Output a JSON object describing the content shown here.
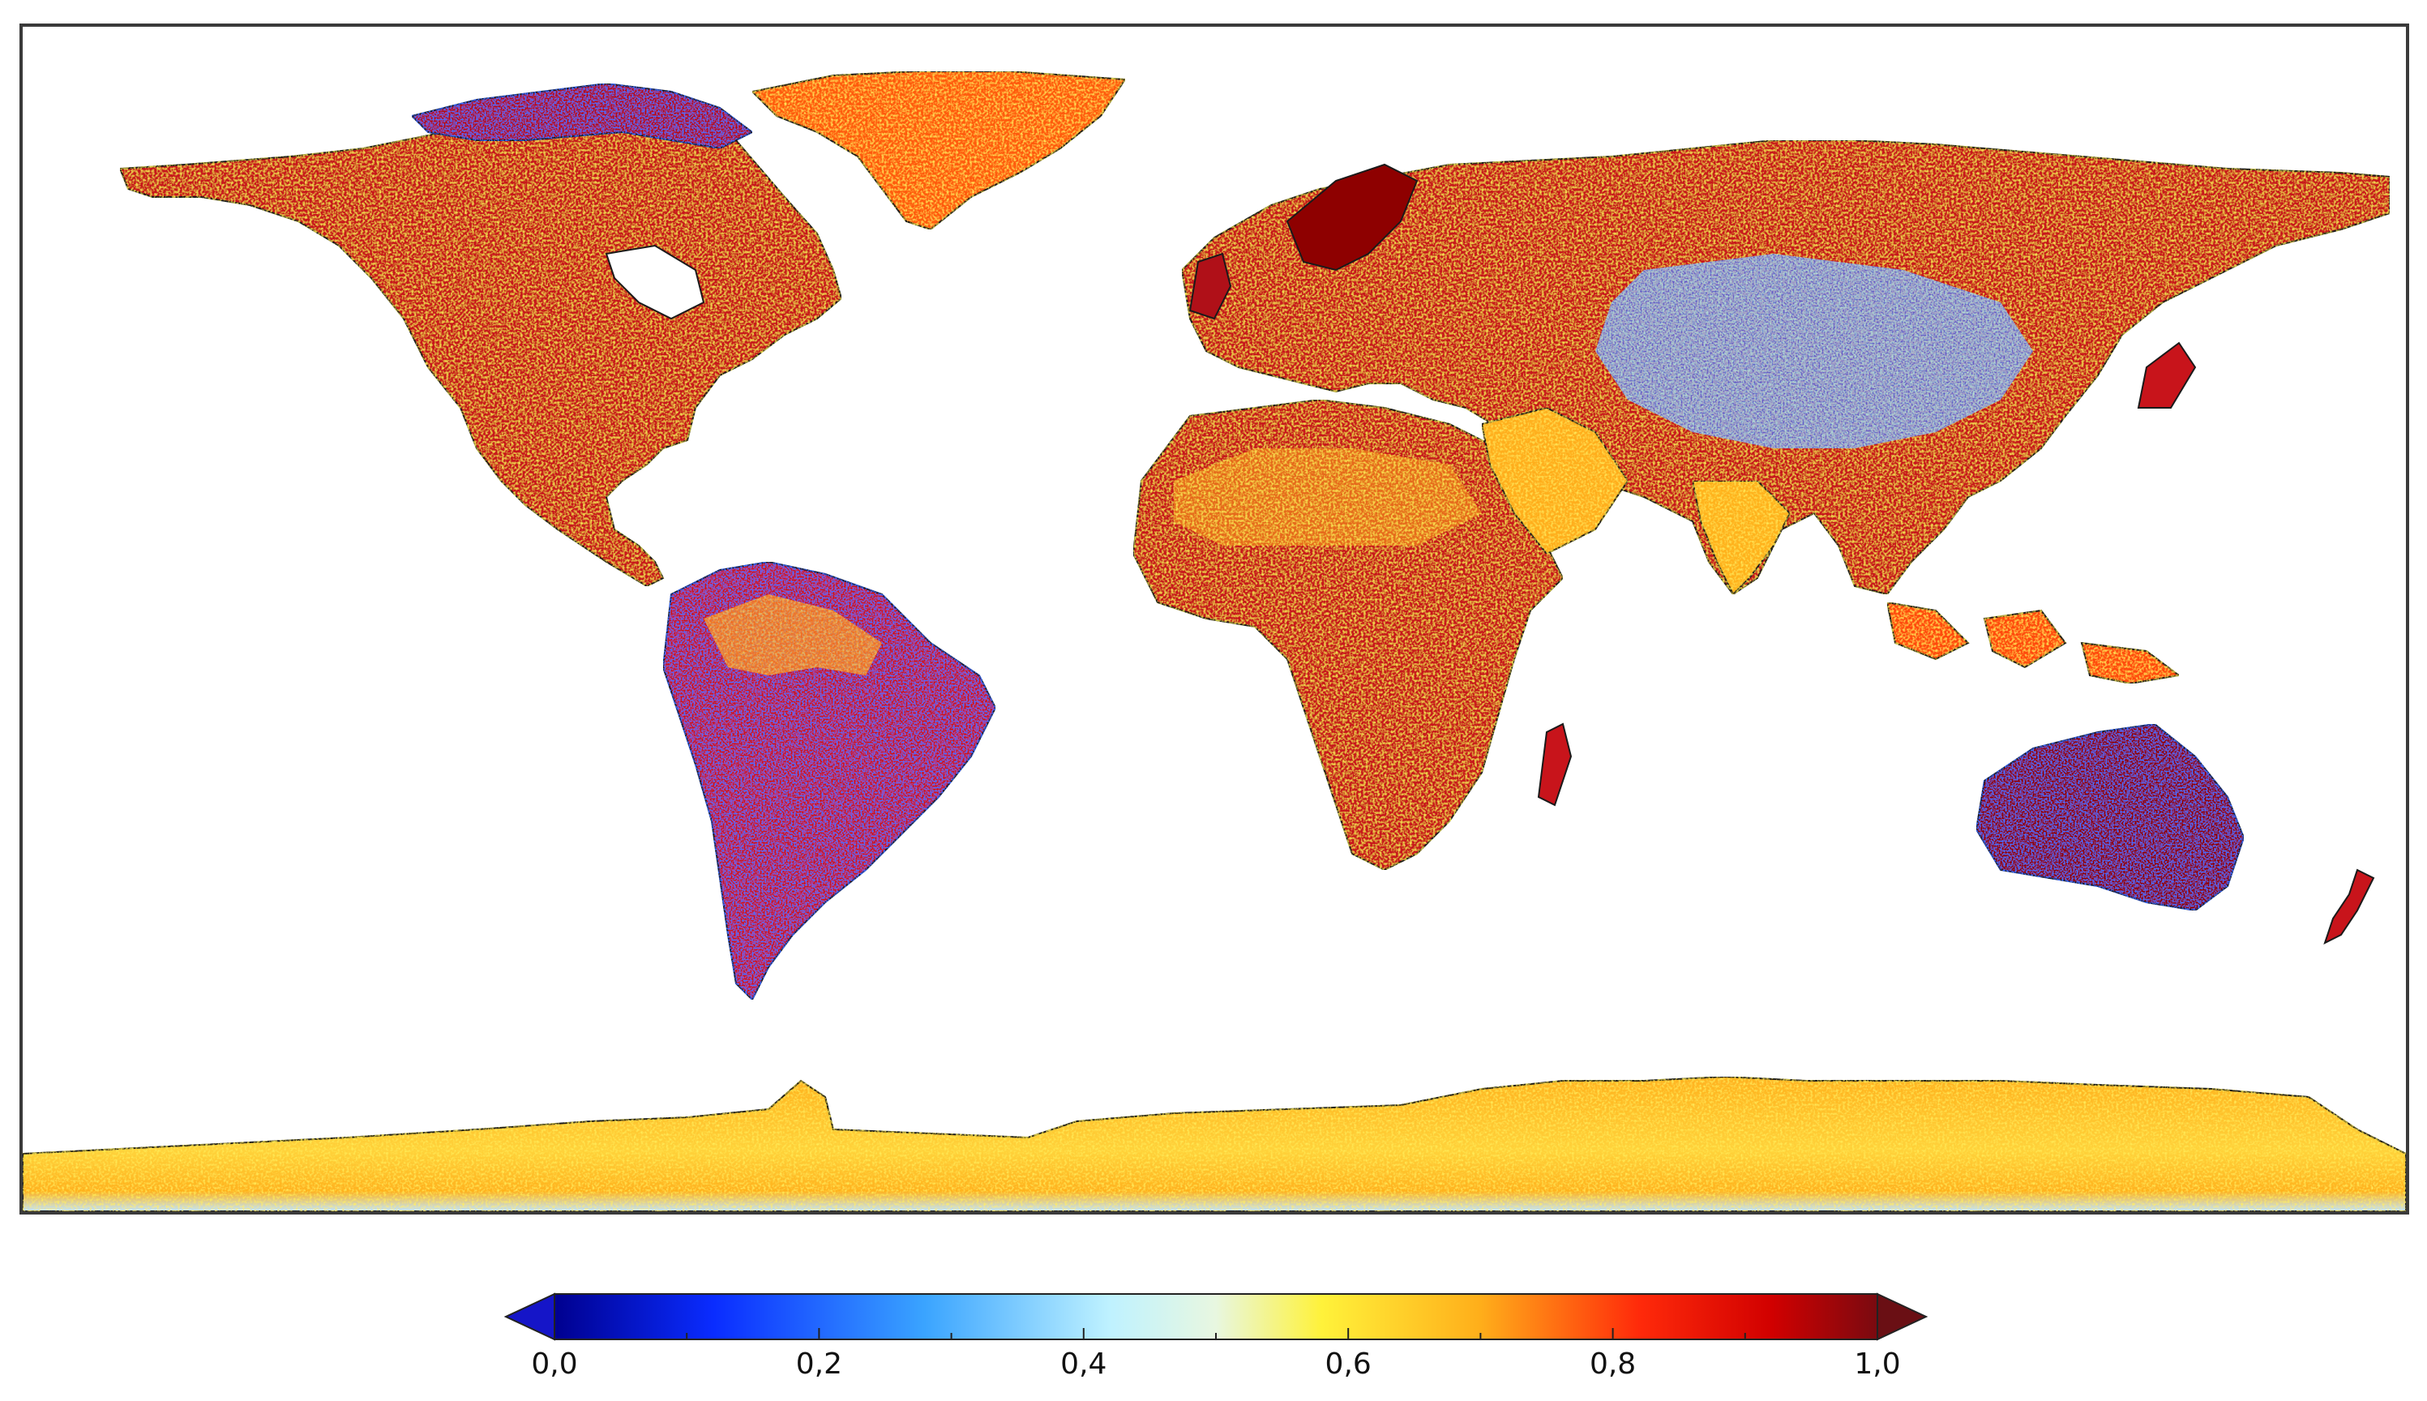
{
  "map": {
    "projection": "equirectangular",
    "extent": {
      "lon": [
        -180,
        180
      ],
      "lat": [
        -90,
        90
      ]
    },
    "colors": {
      "land_fill": "#c8141b",
      "land_dark": "#8e0000",
      "coastline": "#1a1a1a",
      "frame": "#3a3a3a",
      "ocean": "#ffffff"
    }
  },
  "colorbar": {
    "colormap": "jet",
    "range": [
      0.0,
      1.0
    ],
    "extend": "both",
    "under_color": "#1515c8",
    "over_color": "#6a0f14",
    "stops": [
      {
        "v": 0.0,
        "color": "#00008f"
      },
      {
        "v": 0.12,
        "color": "#0a2cff"
      },
      {
        "v": 0.28,
        "color": "#3aa4ff"
      },
      {
        "v": 0.42,
        "color": "#bff2ff"
      },
      {
        "v": 0.5,
        "color": "#e8f7e0"
      },
      {
        "v": 0.58,
        "color": "#fff23a"
      },
      {
        "v": 0.7,
        "color": "#ffae1a"
      },
      {
        "v": 0.82,
        "color": "#ff2a0a"
      },
      {
        "v": 0.92,
        "color": "#d10000"
      },
      {
        "v": 1.0,
        "color": "#7a0a10"
      }
    ],
    "ticks": [
      {
        "value": 0.0,
        "label": "0,0"
      },
      {
        "value": 0.2,
        "label": "0,2"
      },
      {
        "value": 0.4,
        "label": "0,4"
      },
      {
        "value": 0.6,
        "label": "0,6"
      },
      {
        "value": 0.8,
        "label": "0,8"
      },
      {
        "value": 1.0,
        "label": "1,0"
      }
    ],
    "minor_ticks": [
      0.1,
      0.3,
      0.5,
      0.7,
      0.9
    ]
  }
}
